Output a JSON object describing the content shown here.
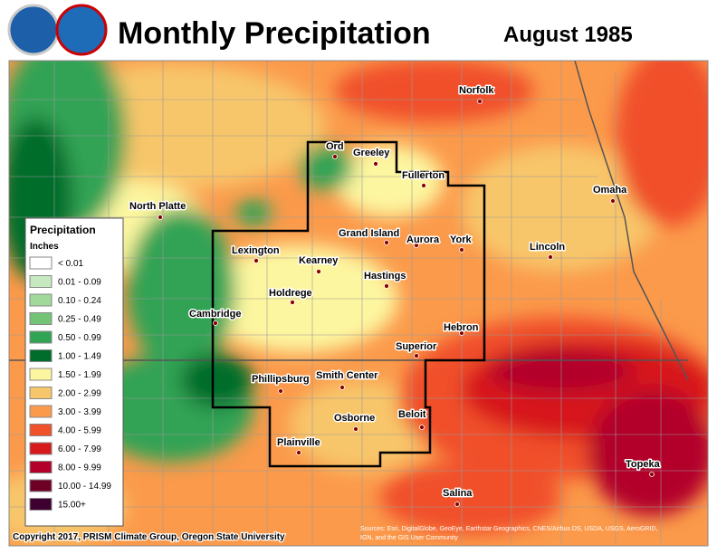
{
  "header": {
    "title": "Monthly Precipitation",
    "date": "August 1985"
  },
  "legend": {
    "title": "Precipitation",
    "units": "Inches",
    "items": [
      {
        "label": "< 0.01",
        "color": "#ffffff"
      },
      {
        "label": "0.01 - 0.09",
        "color": "#c7e9c0"
      },
      {
        "label": "0.10 - 0.24",
        "color": "#a1d99b"
      },
      {
        "label": "0.25 - 0.49",
        "color": "#74c476"
      },
      {
        "label": "0.50 - 0.99",
        "color": "#31a354"
      },
      {
        "label": "1.00 - 1.49",
        "color": "#006d2c"
      },
      {
        "label": "1.50 - 1.99",
        "color": "#fdf6a0"
      },
      {
        "label": "2.00 - 2.99",
        "color": "#f8c66a"
      },
      {
        "label": "3.00 - 3.99",
        "color": "#fb9a4b"
      },
      {
        "label": "4.00 - 5.99",
        "color": "#f0502a"
      },
      {
        "label": "6.00 - 7.99",
        "color": "#d7191c"
      },
      {
        "label": "8.00 - 9.99",
        "color": "#b2002b"
      },
      {
        "label": "10.00 - 14.99",
        "color": "#6e0025"
      },
      {
        "label": "15.00+",
        "color": "#3d0030"
      }
    ]
  },
  "cities": [
    "Norfolk",
    "Ord",
    "Greeley",
    "Fullerton",
    "North Platte",
    "Omaha",
    "Grand Island",
    "Aurora",
    "York",
    "Lincoln",
    "Lexington",
    "Kearney",
    "Hastings",
    "Holdrege",
    "Cambridge",
    "Hebron",
    "Superior",
    "Phillipsburg",
    "Smith Center",
    "Osborne",
    "Beloit",
    "Plainville",
    "Topeka",
    "Salina"
  ],
  "footer": {
    "copyright": "Copyright 2017, PRISM Climate Group, Oregon State University",
    "sources": [
      "Sources: Esri, DigitalGlobe, GeoEye, Earthstar Geographics, CNES/Airbus DS, USDA, USGS, AeroGRID,",
      "IGN, and the GIS User Community"
    ]
  }
}
